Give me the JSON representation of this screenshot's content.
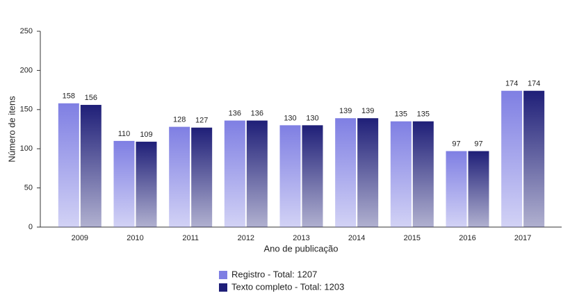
{
  "chart_data": {
    "type": "bar",
    "x_label": "Ano de publicação",
    "y_label": "Número de itens",
    "categories": [
      "2009",
      "2010",
      "2011",
      "2012",
      "2013",
      "2014",
      "2015",
      "2016",
      "2017"
    ],
    "series": [
      {
        "name": "Registro - Total: 1207",
        "color": "#7f7fe3",
        "values": [
          158,
          110,
          128,
          136,
          130,
          139,
          135,
          97,
          174
        ]
      },
      {
        "name": "Texto completo - Total: 1203",
        "color": "#1f1f78",
        "values": [
          156,
          109,
          127,
          136,
          130,
          139,
          135,
          97,
          174
        ]
      }
    ],
    "ylim": [
      0,
      250
    ],
    "yticks": [
      0,
      50,
      100,
      150,
      200,
      250
    ]
  }
}
